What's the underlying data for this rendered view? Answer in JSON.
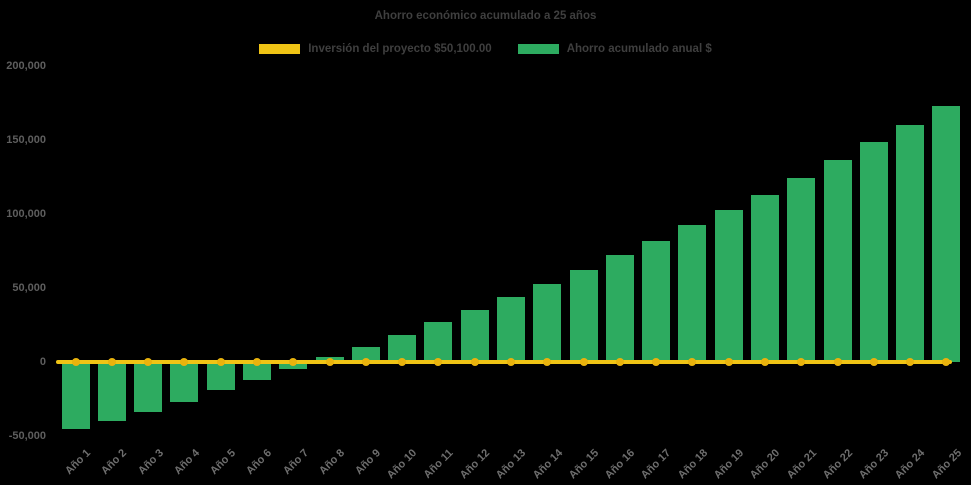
{
  "header": {
    "title": "Ahorro económico acumulado a 25 años"
  },
  "legend": {
    "items": [
      {
        "label": "Inversión del proyecto $50,100.00",
        "color": "#F0C415",
        "series_type": "line"
      },
      {
        "label": "Ahorro acumulado anual $",
        "color": "#2DAB60",
        "series_type": "bar"
      }
    ]
  },
  "colors": {
    "background": "#000000",
    "title_text": "#3F3F3F",
    "axis_text": "#5E5E5E",
    "bar_green": "#2DAB60",
    "line_gold": "#F0C415",
    "marker_gold": "#E9B30D"
  },
  "chart_data": {
    "type": "bar",
    "title": "Ahorro económico acumulado a 25 años",
    "xlabel": "",
    "ylabel": "",
    "categories": [
      "Año 1",
      "Año 2",
      "Año 3",
      "Año 4",
      "Año 5",
      "Año 6",
      "Año 7",
      "Año 8",
      "Año 9",
      "Año 10",
      "Año 11",
      "Año 12",
      "Año 13",
      "Año 14",
      "Año 15",
      "Año 16",
      "Año 17",
      "Año 18",
      "Año 19",
      "Año 20",
      "Año 21",
      "Año 22",
      "Año 23",
      "Año 24",
      "Año 25"
    ],
    "series": [
      {
        "name": "Ahorro acumulado anual $",
        "type": "bar",
        "color": "#2DAB60",
        "values": [
          -45000,
          -40000,
          -33500,
          -27000,
          -18700,
          -11900,
          -4800,
          3500,
          10100,
          18500,
          27300,
          35500,
          44000,
          53000,
          62200,
          72300,
          81800,
          92500,
          102600,
          113200,
          124700,
          136600,
          148600,
          160600,
          173500
        ]
      },
      {
        "name": "Inversión del proyecto $50,100.00",
        "type": "line",
        "color": "#F0C415",
        "marker": "circle",
        "marker_color": "#E9B30D",
        "values": [
          0,
          0,
          0,
          0,
          0,
          0,
          0,
          0,
          0,
          0,
          0,
          0,
          0,
          0,
          0,
          0,
          0,
          0,
          0,
          0,
          0,
          0,
          0,
          0,
          0
        ]
      }
    ],
    "ylim": [
      -50000,
      200000
    ],
    "yticks": [
      200000,
      150000,
      100000,
      50000,
      0,
      -50000
    ],
    "ytick_labels": [
      "200,000",
      "150,000",
      "100,000",
      "50,000",
      "0",
      "-50,000"
    ],
    "grid": false,
    "legend_position": "top"
  }
}
